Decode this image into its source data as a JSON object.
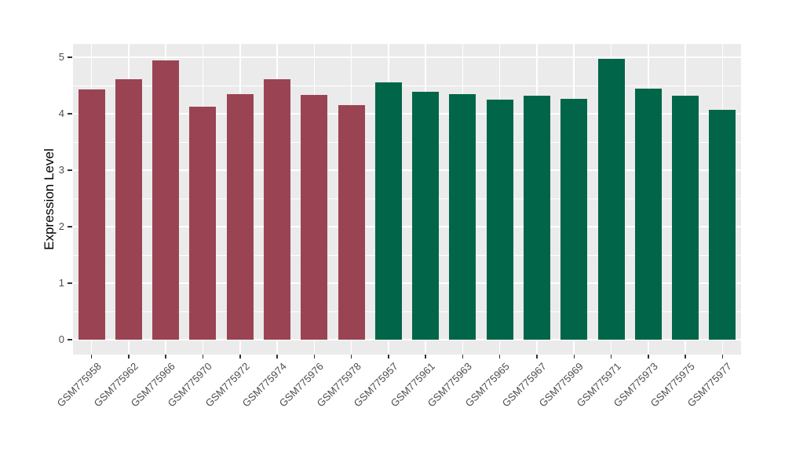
{
  "chart_data": {
    "type": "bar",
    "title": "",
    "xlabel": "",
    "ylabel": "Expression Level",
    "ylim": [
      -0.25,
      5.25
    ],
    "yticks": [
      0,
      1,
      2,
      3,
      4,
      5
    ],
    "grid": "on",
    "legend_position": "none",
    "categories": [
      "GSM775958",
      "GSM775962",
      "GSM775966",
      "GSM775970",
      "GSM775972",
      "GSM775974",
      "GSM775976",
      "GSM775978",
      "GSM775957",
      "GSM775961",
      "GSM775963",
      "GSM775965",
      "GSM775967",
      "GSM775969",
      "GSM775971",
      "GSM775973",
      "GSM775975",
      "GSM775977"
    ],
    "values": [
      4.43,
      4.61,
      4.95,
      4.12,
      4.35,
      4.61,
      4.33,
      4.15,
      4.56,
      4.39,
      4.35,
      4.25,
      4.32,
      4.26,
      4.97,
      4.45,
      4.32,
      4.07
    ],
    "bar_groups": [
      "group1",
      "group1",
      "group1",
      "group1",
      "group1",
      "group1",
      "group1",
      "group1",
      "group2",
      "group2",
      "group2",
      "group2",
      "group2",
      "group2",
      "group2",
      "group2",
      "group2",
      "group2"
    ],
    "group_colors": {
      "group1": "#9A4453",
      "group2": "#016549"
    },
    "colors": {
      "panel_background": "#EBEBEB",
      "gridline": "#FFFFFF",
      "axis_text": "#4D4D4D",
      "tick_mark": "#333333",
      "figure_background": "#FFFFFF"
    }
  }
}
